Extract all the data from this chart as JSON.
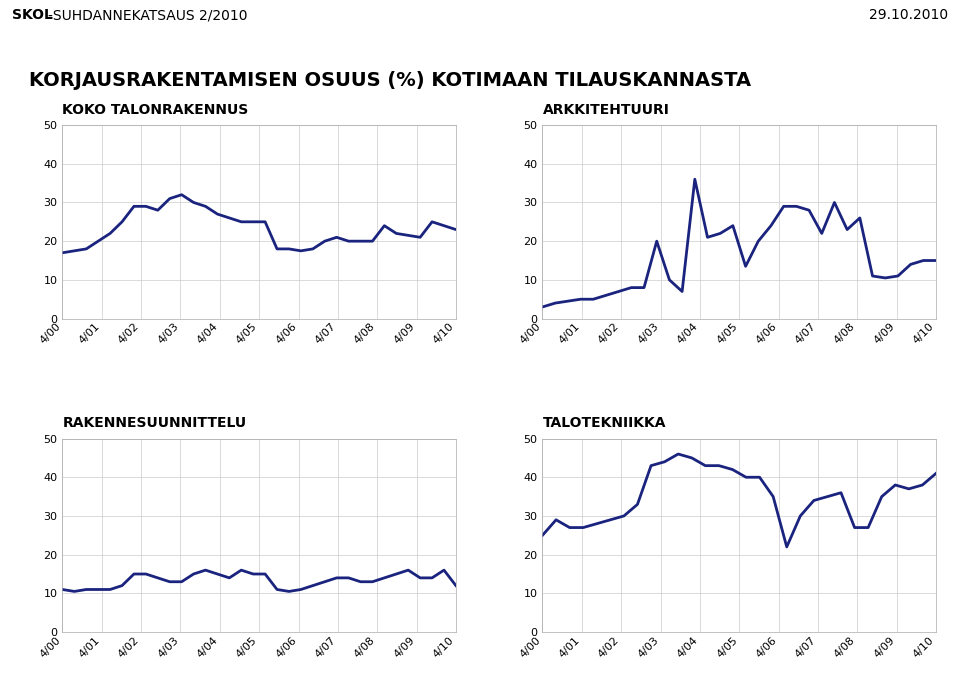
{
  "title": "KORJAUSRAKENTAMISEN OSUUS (%) KOTIMAAN TILAUSKANNASTA",
  "header_left_bold": "SKOL",
  "header_left_normal": "-SUHDANNEKATSAUS 2/2010",
  "header_right": "29.10.2010",
  "x_labels": [
    "4/00",
    "4/01",
    "4/02",
    "4/03",
    "4/04",
    "4/05",
    "4/06",
    "4/07",
    "4/08",
    "4/09",
    "4/10"
  ],
  "panels": [
    {
      "title": "KOKO TALONRAKENNUS",
      "ylim": [
        0,
        50
      ],
      "yticks": [
        0,
        10,
        20,
        30,
        40,
        50
      ],
      "data": [
        17,
        17.5,
        18,
        20,
        22,
        25,
        29,
        29,
        28,
        31,
        32,
        30,
        29,
        27,
        26,
        25,
        25,
        25,
        18,
        18,
        17.5,
        18,
        20,
        21,
        20,
        20,
        20,
        24,
        22,
        21.5,
        21,
        25,
        24,
        23
      ]
    },
    {
      "title": "ARKKITEHTUURI",
      "ylim": [
        0,
        50
      ],
      "yticks": [
        0,
        10,
        20,
        30,
        40,
        50
      ],
      "data": [
        3,
        4,
        4.5,
        5,
        5,
        6,
        7,
        8,
        8,
        20,
        10,
        7,
        36,
        21,
        22,
        24,
        13.5,
        20,
        24,
        29,
        29,
        28,
        22,
        30,
        23,
        26,
        11,
        10.5,
        11,
        14,
        15,
        15
      ]
    },
    {
      "title": "RAKENNESUUNNITTELU",
      "ylim": [
        0,
        50
      ],
      "yticks": [
        0,
        10,
        20,
        30,
        40,
        50
      ],
      "data": [
        11,
        10.5,
        11,
        11,
        11,
        12,
        15,
        15,
        14,
        13,
        13,
        15,
        16,
        15,
        14,
        16,
        15,
        15,
        11,
        10.5,
        11,
        12,
        13,
        14,
        14,
        13,
        13,
        14,
        15,
        16,
        14,
        14,
        16,
        12
      ]
    },
    {
      "title": "TALOTEKNIIKKA",
      "ylim": [
        0,
        50
      ],
      "yticks": [
        0,
        10,
        20,
        30,
        40,
        50
      ],
      "data": [
        25,
        29,
        27,
        27,
        28,
        29,
        30,
        33,
        43,
        44,
        46,
        45,
        43,
        43,
        42,
        40,
        40,
        35,
        22,
        30,
        34,
        35,
        36,
        27,
        27,
        35,
        38,
        37,
        38,
        41
      ]
    }
  ],
  "line_color": "#1a237e",
  "line_width": 2.0,
  "grid_color": "#cccccc",
  "bg_color": "#ffffff",
  "title_fontsize": 14,
  "panel_title_fontsize": 10,
  "tick_fontsize": 8,
  "header_fontsize": 10
}
